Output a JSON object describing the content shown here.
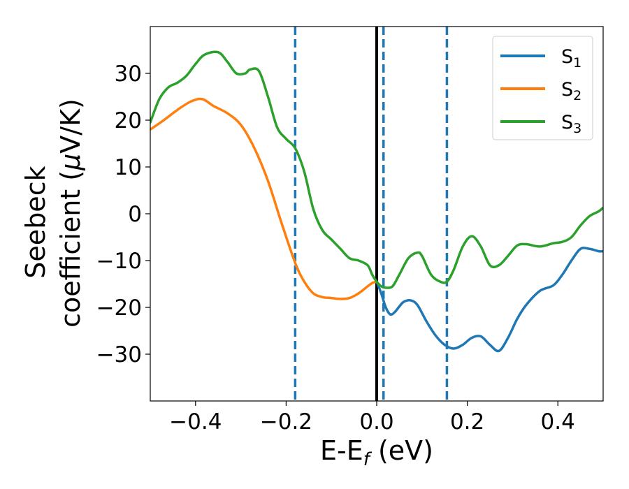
{
  "chart_data": {
    "type": "line",
    "xlabel": {
      "main": "E-E",
      "sub": "f",
      "unit": " (eV)"
    },
    "ylabel": {
      "line1": "Seebeck",
      "line2_text": "coefficient  (",
      "line2_mu": "μ",
      "line2_unit": "V/K)"
    },
    "xlim": [
      -0.5,
      0.5
    ],
    "ylim": [
      -40,
      40
    ],
    "xticks": [
      -0.4,
      -0.2,
      0.0,
      0.2,
      0.4
    ],
    "xtick_labels": [
      "−0.4",
      "−0.2",
      "0.0",
      "0.2",
      "0.4"
    ],
    "yticks": [
      -30,
      -20,
      -10,
      0,
      10,
      20,
      30
    ],
    "ytick_labels": [
      "−30",
      "−20",
      "−10",
      "0",
      "10",
      "20",
      "30"
    ],
    "legend_position": "top-right",
    "vertical_lines": [
      {
        "x": 0.0,
        "style": "solid",
        "color": "#000000"
      },
      {
        "x": -0.18,
        "style": "dashed",
        "color": "#1f77b4"
      },
      {
        "x": 0.015,
        "style": "dashed",
        "color": "#1f77b4"
      },
      {
        "x": 0.155,
        "style": "dashed",
        "color": "#1f77b4"
      }
    ],
    "series": [
      {
        "name": "S",
        "sub": "1",
        "color": "#1f77b4",
        "x": [
          0.0,
          0.01,
          0.02,
          0.03,
          0.04,
          0.05,
          0.06,
          0.075,
          0.09,
          0.11,
          0.13,
          0.15,
          0.17,
          0.19,
          0.21,
          0.23,
          0.25,
          0.27,
          0.29,
          0.31,
          0.33,
          0.36,
          0.39,
          0.41,
          0.43,
          0.45,
          0.47,
          0.49,
          0.5
        ],
        "values": [
          -14.5,
          -17.0,
          -20.0,
          -21.5,
          -21.0,
          -19.8,
          -18.8,
          -18.5,
          -19.5,
          -23.0,
          -26.0,
          -28.0,
          -28.8,
          -28.0,
          -26.5,
          -26.2,
          -28.0,
          -29.3,
          -26.5,
          -22.5,
          -19.5,
          -16.5,
          -15.3,
          -13.0,
          -10.0,
          -7.5,
          -7.5,
          -8.0,
          -8.0
        ]
      },
      {
        "name": "S",
        "sub": "2",
        "color": "#ff7f0e",
        "x": [
          -0.5,
          -0.47,
          -0.44,
          -0.41,
          -0.385,
          -0.36,
          -0.33,
          -0.3,
          -0.27,
          -0.24,
          -0.21,
          -0.18,
          -0.16,
          -0.14,
          -0.12,
          -0.1,
          -0.08,
          -0.06,
          -0.04,
          -0.02,
          -0.01,
          0.0
        ],
        "values": [
          18.0,
          20.0,
          22.2,
          24.0,
          24.5,
          23.0,
          21.5,
          19.0,
          14.0,
          7.0,
          -2.0,
          -10.5,
          -14.5,
          -17.0,
          -17.8,
          -18.0,
          -18.2,
          -18.0,
          -17.0,
          -15.5,
          -14.8,
          -14.5
        ]
      },
      {
        "name": "S",
        "sub": "3",
        "color": "#2ca02c",
        "x": [
          -0.5,
          -0.48,
          -0.46,
          -0.44,
          -0.42,
          -0.4,
          -0.38,
          -0.35,
          -0.33,
          -0.31,
          -0.29,
          -0.28,
          -0.26,
          -0.24,
          -0.22,
          -0.2,
          -0.18,
          -0.16,
          -0.14,
          -0.12,
          -0.1,
          -0.08,
          -0.06,
          -0.04,
          -0.02,
          -0.01,
          0.0,
          0.01,
          0.02,
          0.035,
          0.05,
          0.07,
          0.09,
          0.1,
          0.12,
          0.14,
          0.155,
          0.17,
          0.19,
          0.21,
          0.23,
          0.25,
          0.27,
          0.29,
          0.31,
          0.33,
          0.36,
          0.39,
          0.41,
          0.43,
          0.45,
          0.47,
          0.49,
          0.5
        ],
        "values": [
          19.5,
          24.5,
          27.0,
          28.0,
          29.5,
          32.0,
          34.0,
          34.5,
          32.5,
          30.0,
          30.0,
          30.8,
          30.5,
          25.0,
          18.5,
          16.0,
          14.0,
          9.0,
          1.0,
          -3.5,
          -5.5,
          -7.5,
          -9.5,
          -10.0,
          -11.0,
          -13.0,
          -14.5,
          -15.5,
          -15.8,
          -15.5,
          -13.0,
          -9.5,
          -8.3,
          -9.0,
          -13.0,
          -14.5,
          -14.5,
          -12.0,
          -7.0,
          -4.8,
          -7.0,
          -11.0,
          -11.0,
          -9.0,
          -6.8,
          -6.5,
          -7.0,
          -6.3,
          -6.0,
          -5.0,
          -2.5,
          -0.5,
          0.5,
          1.3
        ]
      }
    ]
  }
}
